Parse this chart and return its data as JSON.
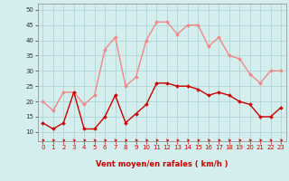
{
  "x": [
    0,
    1,
    2,
    3,
    4,
    5,
    6,
    7,
    8,
    9,
    10,
    11,
    12,
    13,
    14,
    15,
    16,
    17,
    18,
    19,
    20,
    21,
    22,
    23
  ],
  "wind_mean": [
    13,
    11,
    13,
    23,
    11,
    11,
    15,
    22,
    13,
    16,
    19,
    26,
    26,
    25,
    25,
    24,
    22,
    23,
    22,
    20,
    19,
    15,
    15,
    18
  ],
  "wind_gust": [
    20,
    17,
    23,
    23,
    19,
    22,
    37,
    41,
    25,
    28,
    40,
    46,
    46,
    42,
    45,
    45,
    38,
    41,
    35,
    34,
    29,
    26,
    30,
    30
  ],
  "mean_color": "#cc0000",
  "gust_color": "#f08888",
  "bg_color": "#d4eeed",
  "grid_color": "#aacfcc",
  "xlabel": "Vent moyen/en rafales ( km/h )",
  "xlabel_color": "#cc0000",
  "ylim": [
    7,
    52
  ],
  "yticks": [
    10,
    15,
    20,
    25,
    30,
    35,
    40,
    45,
    50
  ],
  "xticks": [
    0,
    1,
    2,
    3,
    4,
    5,
    6,
    7,
    8,
    9,
    10,
    11,
    12,
    13,
    14,
    15,
    16,
    17,
    18,
    19,
    20,
    21,
    22,
    23
  ],
  "marker": "D",
  "marker_size": 2,
  "linewidth": 1.0
}
